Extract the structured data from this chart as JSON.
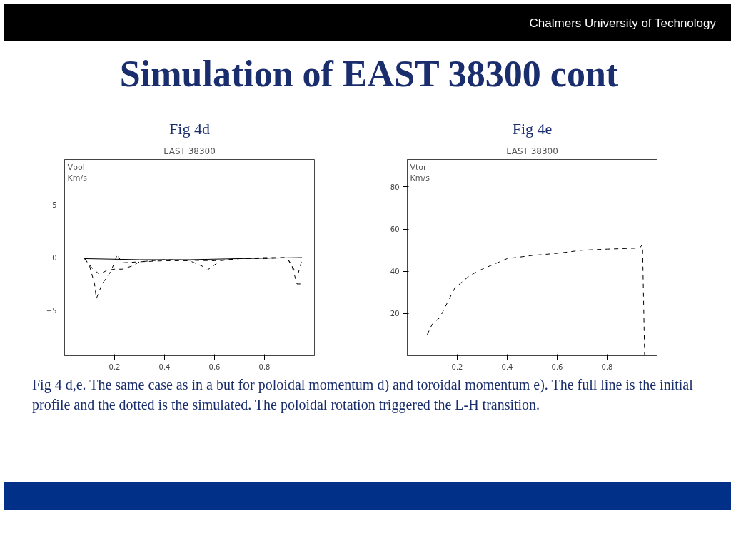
{
  "chart_data": [
    {
      "type": "line",
      "title": "Fig 4d",
      "subtitle": "EAST 38300",
      "ylabel": "Vpol\nKm/s",
      "annotations": [
        "Chalmers University of Technology",
        "Simulation of EAST 38300 cont",
        "Fig 4 d,e.  The same case as in a but for poloidal momentum d) and toroidal momentum e). The full line is the initial profile and the dotted is the simulated. The poloidal rotation triggered the L-H transition."
      ],
      "xlim": [
        0,
        1
      ],
      "ylim": [
        -9.3,
        9.3
      ],
      "xticks": [
        0.2,
        0.4,
        0.6,
        0.8
      ],
      "yticks": [
        -5,
        0,
        5
      ],
      "grid": false,
      "marker": "none",
      "series": [
        {
          "color": "#000000",
          "line_style": "solid",
          "x": [
            0.08,
            0.3,
            0.5,
            0.7,
            0.95
          ],
          "values": [
            -0.1,
            -0.2,
            -0.2,
            -0.1,
            0.0
          ]
        },
        {
          "color": "#000000",
          "line_style": "dashed",
          "x": [
            0.08,
            0.1,
            0.12,
            0.127,
            0.15,
            0.18,
            0.2,
            0.21,
            0.23,
            0.3,
            0.4,
            0.5,
            0.55,
            0.57,
            0.6,
            0.62,
            0.7,
            0.8,
            0.89,
            0.92,
            0.935,
            0.95
          ],
          "values": [
            -0.1,
            -0.8,
            -2.5,
            -3.9,
            -2.5,
            -1.5,
            -0.5,
            0.3,
            -0.5,
            -0.4,
            -0.3,
            -0.3,
            -0.8,
            -1.2,
            -0.7,
            -0.3,
            -0.1,
            0.0,
            0.0,
            -1.2,
            -1.5,
            -0.2
          ]
        },
        {
          "color": "#000000",
          "line_style": "dashed",
          "x": [
            0.08,
            0.11,
            0.14,
            0.17,
            0.2,
            0.23,
            0.27,
            0.3,
            0.4,
            0.6,
            0.7,
            0.8,
            0.89,
            0.91,
            0.93,
            0.95
          ],
          "values": [
            -0.1,
            -1.0,
            -1.6,
            -1.2,
            -1.1,
            -1.1,
            -0.8,
            -0.4,
            -0.2,
            -0.3,
            -0.1,
            -0.1,
            0.0,
            -0.8,
            -2.5,
            -2.5
          ]
        }
      ]
    },
    {
      "type": "line",
      "title": "Fig 4e",
      "subtitle": "EAST 38300",
      "ylabel": "Vtor\nKm/s",
      "xlim": [
        0,
        1
      ],
      "ylim": [
        0,
        93
      ],
      "xticks": [
        0.2,
        0.4,
        0.6,
        0.8
      ],
      "yticks": [
        20,
        40,
        60,
        80
      ],
      "grid": false,
      "marker": "none",
      "series": [
        {
          "color": "#000000",
          "line_style": "solid",
          "x": [
            0.08,
            0.48
          ],
          "values": [
            0.3,
            0.3
          ]
        },
        {
          "color": "#000000",
          "line_style": "dashed",
          "x": [
            0.08,
            0.1,
            0.13,
            0.16,
            0.19,
            0.25,
            0.3,
            0.4,
            0.5,
            0.6,
            0.7,
            0.8,
            0.93,
            0.94,
            0.942,
            0.95
          ],
          "values": [
            10,
            15,
            18,
            25,
            32,
            38,
            41,
            46,
            47.5,
            48.5,
            50,
            50.5,
            51,
            52.5,
            50,
            0
          ]
        }
      ]
    }
  ]
}
